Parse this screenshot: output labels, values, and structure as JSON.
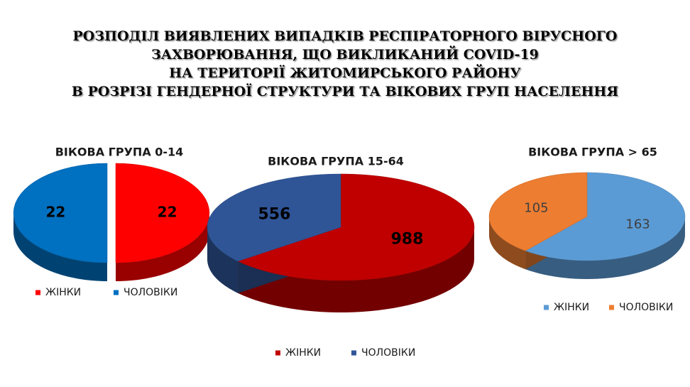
{
  "header": {
    "title_lines": [
      "РОЗПОДІЛ ВИЯВЛЕНИХ ВИПАДКІВ РЕСПІРАТОРНОГО ВІРУСНОГО",
      "ЗАХВОРЮВАННЯ, ЩО ВИКЛИКАНИЙ COVID-19",
      "НА ТЕРИТОРІЇ ЖИТОМИРСЬКОГО РАЙОНУ",
      "В РОЗРІЗІ ГЕНДЕРНОЇ СТРУКТУРИ ТА ВІКОВИХ ГРУП НАСЕЛЕННЯ"
    ]
  },
  "chart_data": [
    {
      "type": "pie",
      "title": "ВІКОВА ГРУПА 0-14",
      "categories": [
        "ЖІНКИ",
        "ЧОЛОВІКИ"
      ],
      "values": [
        22,
        22
      ],
      "colors": [
        "#ff0000",
        "#0070c0"
      ]
    },
    {
      "type": "pie",
      "title": "ВІКОВА ГРУПА 15-64",
      "categories": [
        "ЖІНКИ",
        "ЧОЛОВІКИ"
      ],
      "values": [
        988,
        556
      ],
      "colors": [
        "#c00000",
        "#2f5597"
      ]
    },
    {
      "type": "pie",
      "title": "ВІКОВА ГРУПА > 65",
      "categories": [
        "ЖІНКИ",
        "ЧОЛОВІКИ"
      ],
      "values": [
        163,
        105
      ],
      "colors": [
        "#5b9bd5",
        "#ed7d31"
      ]
    }
  ]
}
